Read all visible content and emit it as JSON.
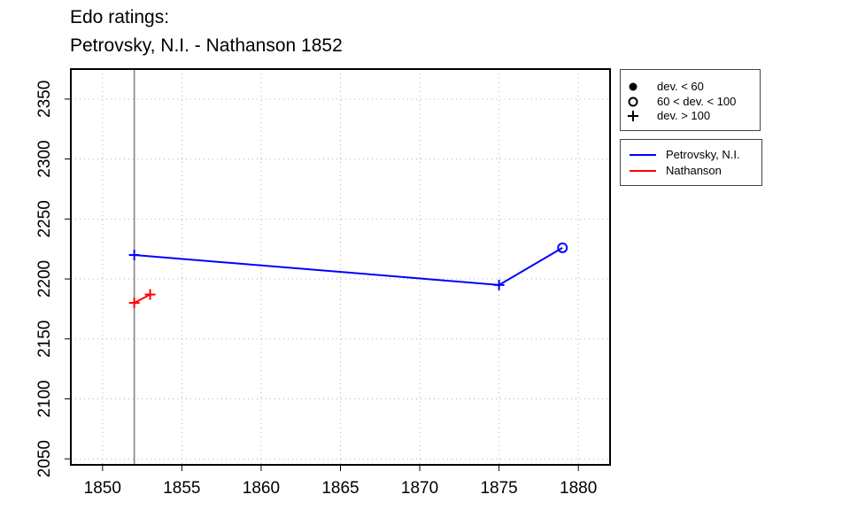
{
  "title_line1": "Edo ratings:",
  "title_line2": "Petrovsky, N.I. - Nathanson 1852",
  "legend_markers": [
    {
      "symbol": "filled-circle",
      "label": "dev. < 60"
    },
    {
      "symbol": "open-circle",
      "label": "60 < dev. < 100"
    },
    {
      "symbol": "plus",
      "label": "dev. > 100"
    }
  ],
  "legend_lines": [
    {
      "label": "Petrovsky, N.I.",
      "color": "#0000ff"
    },
    {
      "label": "Nathanson",
      "color": "#ff0000"
    }
  ],
  "chart_data": {
    "type": "line",
    "title": "Edo ratings: Petrovsky, N.I. - Nathanson 1852",
    "xlabel": "",
    "ylabel": "",
    "xlim": [
      1848,
      1882
    ],
    "ylim": [
      2045,
      2375
    ],
    "xticks": [
      1850,
      1855,
      1860,
      1865,
      1870,
      1875,
      1880
    ],
    "yticks": [
      2050,
      2100,
      2150,
      2200,
      2250,
      2300,
      2350
    ],
    "grid": true,
    "reference_line_x": 1852,
    "legend_placement": "outside-right",
    "series": [
      {
        "name": "Petrovsky, N.I.",
        "color": "#0000ff",
        "points": [
          {
            "x": 1852,
            "y": 2220,
            "marker": "plus"
          },
          {
            "x": 1875,
            "y": 2195,
            "marker": "plus"
          },
          {
            "x": 1879,
            "y": 2226,
            "marker": "open-circle"
          }
        ]
      },
      {
        "name": "Nathanson",
        "color": "#ff0000",
        "points": [
          {
            "x": 1852,
            "y": 2180,
            "marker": "plus"
          },
          {
            "x": 1853,
            "y": 2187,
            "marker": "plus"
          }
        ]
      }
    ]
  }
}
